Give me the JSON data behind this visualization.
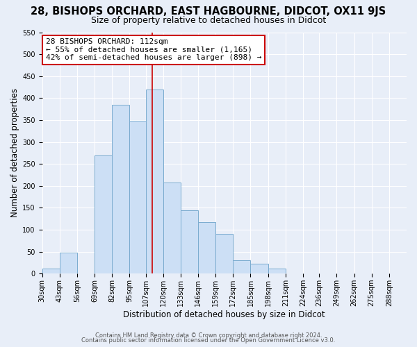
{
  "title": "28, BISHOPS ORCHARD, EAST HAGBOURNE, DIDCOT, OX11 9JS",
  "subtitle": "Size of property relative to detached houses in Didcot",
  "xlabel": "Distribution of detached houses by size in Didcot",
  "ylabel": "Number of detached properties",
  "bin_labels": [
    "30sqm",
    "43sqm",
    "56sqm",
    "69sqm",
    "82sqm",
    "95sqm",
    "107sqm",
    "120sqm",
    "133sqm",
    "146sqm",
    "159sqm",
    "172sqm",
    "185sqm",
    "198sqm",
    "211sqm",
    "224sqm",
    "236sqm",
    "249sqm",
    "262sqm",
    "275sqm",
    "288sqm"
  ],
  "bin_edges": [
    30,
    43,
    56,
    69,
    82,
    95,
    107,
    120,
    133,
    146,
    159,
    172,
    185,
    198,
    211,
    224,
    236,
    249,
    262,
    275,
    288
  ],
  "bar_heights": [
    12,
    48,
    0,
    270,
    385,
    348,
    420,
    208,
    145,
    118,
    90,
    31,
    22,
    12,
    0,
    0,
    0,
    0,
    0,
    0
  ],
  "bar_color": "#ccdff5",
  "bar_edge_color": "#7aabcf",
  "vline_x": 112,
  "vline_color": "#cc0000",
  "annotation_line1": "28 BISHOPS ORCHARD: 112sqm",
  "annotation_line2": "← 55% of detached houses are smaller (1,165)",
  "annotation_line3": "42% of semi-detached houses are larger (898) →",
  "annotation_box_facecolor": "#ffffff",
  "annotation_box_edgecolor": "#cc0000",
  "ylim": [
    0,
    550
  ],
  "yticks": [
    0,
    50,
    100,
    150,
    200,
    250,
    300,
    350,
    400,
    450,
    500,
    550
  ],
  "bg_color": "#e8eef8",
  "grid_color": "#ffffff",
  "title_fontsize": 10.5,
  "subtitle_fontsize": 9,
  "axis_label_fontsize": 8.5,
  "tick_fontsize": 7,
  "annotation_fontsize": 8,
  "footer1": "Contains HM Land Registry data © Crown copyright and database right 2024.",
  "footer2": "Contains public sector information licensed under the Open Government Licence v3.0.",
  "footer_fontsize": 6
}
